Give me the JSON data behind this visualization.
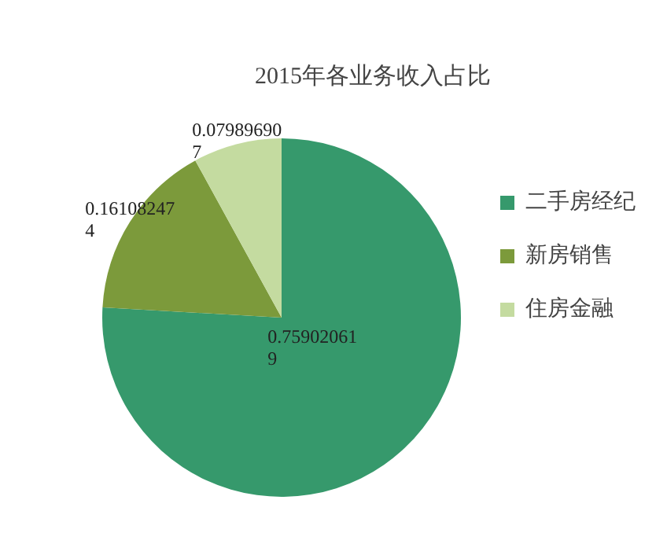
{
  "chart_data": {
    "type": "pie",
    "title": "2015年各业务收入占比",
    "categories": [
      "二手房经纪",
      "新房销售",
      "住房金融"
    ],
    "values": [
      0.759020619,
      0.161082474,
      0.079896907
    ],
    "colors": [
      "#36996c",
      "#7c9a3b",
      "#c4dba0"
    ],
    "data_labels": true,
    "legend": "right"
  }
}
